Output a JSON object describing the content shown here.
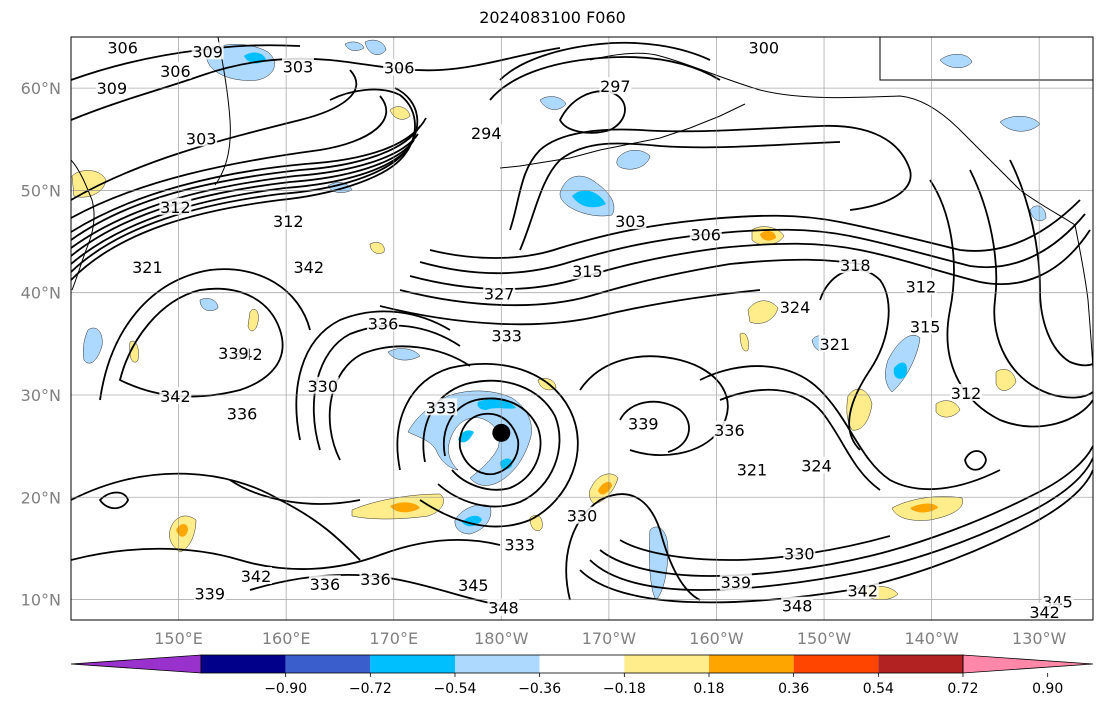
{
  "title": "2024083100 F060",
  "map": {
    "projection": "PlateCarree (Pacific-centred)",
    "lon_range_deg_east": [
      140,
      235
    ],
    "lat_range_deg_north": [
      8,
      65
    ],
    "lat_ticks": [
      "10°N",
      "20°N",
      "30°N",
      "40°N",
      "50°N",
      "60°N"
    ],
    "lon_ticks": [
      "150°E",
      "160°E",
      "170°E",
      "180°W",
      "170°W",
      "160°W",
      "150°W",
      "140°W",
      "130°W"
    ],
    "gridlines": true,
    "coastline_color": "#000000",
    "contour_color": "#000000",
    "contour_interval": 3,
    "storm_center_marker": {
      "lon": 180.0,
      "lat": 26.3,
      "color": "#000000"
    }
  },
  "contour_labels": [
    {
      "text": "306",
      "lon": 144.8,
      "lat": 63.9
    },
    {
      "text": "309",
      "lon": 152.7,
      "lat": 63.5
    },
    {
      "text": "306",
      "lon": 149.7,
      "lat": 61.6
    },
    {
      "text": "309",
      "lon": 143.8,
      "lat": 59.9
    },
    {
      "text": "303",
      "lon": 161.1,
      "lat": 62.0
    },
    {
      "text": "306",
      "lon": 170.5,
      "lat": 61.9
    },
    {
      "text": "303",
      "lon": 152.1,
      "lat": 55.0
    },
    {
      "text": "300",
      "lon": 204.4,
      "lat": 63.9
    },
    {
      "text": "297",
      "lon": 190.6,
      "lat": 60.1
    },
    {
      "text": "294",
      "lon": 178.6,
      "lat": 55.5
    },
    {
      "text": "312",
      "lon": 149.7,
      "lat": 48.3
    },
    {
      "text": "312",
      "lon": 160.2,
      "lat": 46.9
    },
    {
      "text": "321",
      "lon": 147.1,
      "lat": 42.4
    },
    {
      "text": "342",
      "lon": 162.1,
      "lat": 42.4
    },
    {
      "text": "303",
      "lon": 192.0,
      "lat": 46.9
    },
    {
      "text": "306",
      "lon": 199.0,
      "lat": 45.6
    },
    {
      "text": "315",
      "lon": 188.0,
      "lat": 42.0
    },
    {
      "text": "327",
      "lon": 179.8,
      "lat": 39.8
    },
    {
      "text": "336",
      "lon": 169.0,
      "lat": 36.9
    },
    {
      "text": "333",
      "lon": 180.5,
      "lat": 35.7
    },
    {
      "text": "318",
      "lon": 212.9,
      "lat": 42.6
    },
    {
      "text": "324",
      "lon": 207.3,
      "lat": 38.5
    },
    {
      "text": "321",
      "lon": 211.0,
      "lat": 34.9
    },
    {
      "text": "312",
      "lon": 219.0,
      "lat": 40.5
    },
    {
      "text": "315",
      "lon": 219.4,
      "lat": 36.6
    },
    {
      "text": "312",
      "lon": 223.2,
      "lat": 30.1
    },
    {
      "text": "342",
      "lon": 156.4,
      "lat": 33.9
    },
    {
      "text": "339",
      "lon": 155.1,
      "lat": 34.0
    },
    {
      "text": "342",
      "lon": 149.7,
      "lat": 29.8
    },
    {
      "text": "336",
      "lon": 155.9,
      "lat": 28.1
    },
    {
      "text": "330",
      "lon": 163.4,
      "lat": 30.8
    },
    {
      "text": "333",
      "lon": 174.4,
      "lat": 28.7
    },
    {
      "text": "339",
      "lon": 193.2,
      "lat": 27.1
    },
    {
      "text": "336",
      "lon": 201.2,
      "lat": 26.5
    },
    {
      "text": "321",
      "lon": 203.3,
      "lat": 22.6
    },
    {
      "text": "324",
      "lon": 209.3,
      "lat": 23.0
    },
    {
      "text": "330",
      "lon": 187.5,
      "lat": 18.1
    },
    {
      "text": "333",
      "lon": 181.7,
      "lat": 15.3
    },
    {
      "text": "330",
      "lon": 207.7,
      "lat": 14.4
    },
    {
      "text": "339",
      "lon": 201.8,
      "lat": 11.6
    },
    {
      "text": "342",
      "lon": 213.6,
      "lat": 10.8
    },
    {
      "text": "342",
      "lon": 157.2,
      "lat": 12.2
    },
    {
      "text": "339",
      "lon": 152.9,
      "lat": 10.5
    },
    {
      "text": "336",
      "lon": 163.6,
      "lat": 11.4
    },
    {
      "text": "336",
      "lon": 168.3,
      "lat": 11.9
    },
    {
      "text": "345",
      "lon": 177.4,
      "lat": 11.3
    },
    {
      "text": "348",
      "lon": 180.2,
      "lat": 9.1
    },
    {
      "text": "348",
      "lon": 207.5,
      "lat": 9.3
    },
    {
      "text": "345",
      "lon": 231.7,
      "lat": 9.7
    },
    {
      "text": "342",
      "lon": 230.5,
      "lat": 8.7
    }
  ],
  "colorbar": {
    "tick_labels": [
      "−0.90",
      "−0.72",
      "−0.54",
      "−0.36",
      "−0.18",
      "0.18",
      "0.36",
      "0.54",
      "0.72",
      "0.90"
    ],
    "extend": "both",
    "colors": [
      "#9932cc",
      "#00008b",
      "#3a5fcd",
      "#00bfff",
      "#add8ff",
      "#ffffff",
      "#ffec8b",
      "#ffa500",
      "#ff4500",
      "#b22222",
      "#ff88aa"
    ]
  },
  "shading_colors": {
    "weak_negative": "#add8ff",
    "moderate_negative": "#00bfff",
    "weak_positive": "#ffec8b",
    "moderate_positive": "#ffa500"
  }
}
